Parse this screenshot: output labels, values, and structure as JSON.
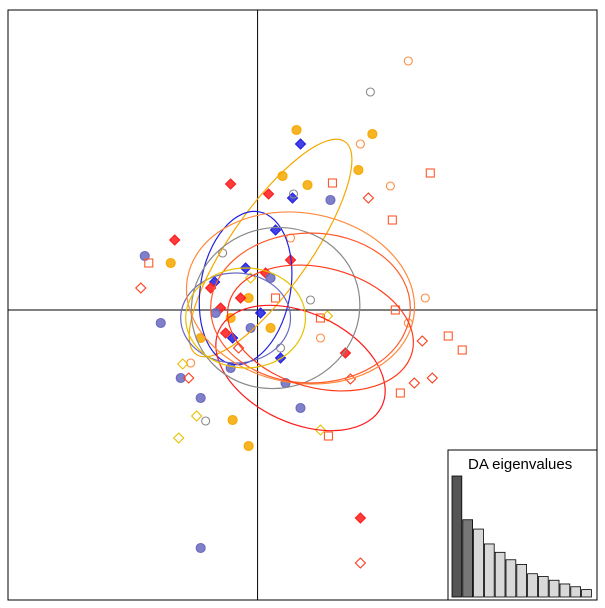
{
  "chart_data": [
    {
      "type": "scatter",
      "xlim": [
        -5,
        6.8
      ],
      "ylim": [
        -5.8,
        6.0
      ],
      "series": [
        {
          "color": "#f6a800",
          "shape": "circle",
          "filled": true,
          "x": [
            0.78,
            2.3,
            1.0,
            0.5,
            2.02,
            -1.74,
            -0.54,
            -0.18,
            0.26,
            -0.5,
            -0.18,
            -1.14
          ],
          "y": [
            3.6,
            3.52,
            2.5,
            2.68,
            2.8,
            0.94,
            -0.16,
            0.24,
            -0.36,
            -2.2,
            -2.72,
            -0.56
          ],
          "ellipse": {
            "center": [
              0.26,
              1.24
            ],
            "axes": [
              2.6,
              0.8
            ],
            "angle": 55
          }
        },
        {
          "color": "#2020e0",
          "shape": "diamond",
          "filled": true,
          "x": [
            0.86,
            0.7,
            0.36,
            -0.24,
            0.06,
            -0.86,
            -0.5,
            0.46
          ],
          "y": [
            3.32,
            2.24,
            1.6,
            0.84,
            -0.06,
            0.56,
            -0.56,
            -0.96
          ],
          "ellipse": {
            "center": [
              -0.24,
              0.44
            ],
            "axes": [
              1.55,
              0.9
            ],
            "angle": 80
          }
        },
        {
          "color": "#ff1a1a",
          "shape": "diamond",
          "filled": true,
          "x": [
            -0.54,
            0.22,
            -1.66,
            -0.94,
            -0.74,
            -0.34,
            0.16,
            1.76,
            2.06,
            0.66,
            -0.64
          ],
          "y": [
            2.52,
            2.32,
            1.4,
            0.44,
            0.04,
            0.24,
            0.74,
            -0.86,
            -4.16,
            1.0,
            -0.46
          ],
          "ellipse": {
            "center": [
              0.86,
              -1.16
            ],
            "axes": [
              1.8,
              1.1
            ],
            "angle": -25
          }
        },
        {
          "color": "#6a6ac0",
          "shape": "circle",
          "filled": true,
          "x": [
            -2.26,
            -1.14,
            1.46,
            -1.94,
            -1.14,
            -0.54,
            -0.14,
            0.56,
            0.86,
            -1.54,
            -0.84,
            0.26
          ],
          "y": [
            1.08,
            -4.76,
            2.2,
            -0.26,
            -1.76,
            -1.16,
            -0.36,
            -1.46,
            -1.96,
            -1.36,
            -0.06,
            0.64
          ],
          "ellipse": {
            "center": [
              -0.44,
              -0.16
            ],
            "axes": [
              1.1,
              0.9
            ],
            "angle": 0
          }
        },
        {
          "color": "#888888",
          "shape": "circle",
          "filled": false,
          "x": [
            2.26,
            0.72,
            1.06,
            -1.04,
            -0.7,
            0.46
          ],
          "y": [
            4.36,
            2.32,
            0.2,
            -2.22,
            1.14,
            -0.76
          ],
          "ellipse": {
            "center": [
              0.36,
              0.04
            ],
            "axes": [
              1.7,
              1.6
            ],
            "angle": 20
          }
        },
        {
          "color": "#ff8a3d",
          "shape": "circle",
          "filled": false,
          "x": [
            3.02,
            2.06,
            2.66,
            3.36,
            3.02,
            1.26,
            -1.34,
            0.66
          ],
          "y": [
            4.98,
            3.32,
            2.48,
            0.24,
            -0.26,
            -0.56,
            -1.06,
            1.44
          ],
          "ellipse": {
            "center": [
              0.86,
              0.24
            ],
            "axes": [
              2.3,
              1.7
            ],
            "angle": -10
          }
        },
        {
          "color": "#ff5a2a",
          "shape": "square",
          "filled": false,
          "x": [
            3.46,
            1.5,
            2.7,
            2.76,
            3.82,
            4.1,
            2.86,
            1.42,
            -2.18,
            1.26,
            0.36
          ],
          "y": [
            2.74,
            2.54,
            1.8,
            0,
            -0.52,
            -0.8,
            -1.66,
            -2.52,
            0.94,
            -0.16,
            0.24
          ],
          "ellipse": {
            "center": [
              1.06,
              0.04
            ],
            "axes": [
              2.0,
              1.5
            ],
            "angle": 0
          }
        },
        {
          "color": "#ff3a1a",
          "shape": "diamond",
          "filled": false,
          "x": [
            -2.34,
            2.06,
            3.5,
            3.14,
            3.3,
            -1.38,
            1.86,
            -0.38,
            2.22
          ],
          "y": [
            0.44,
            -5.06,
            -1.36,
            -1.46,
            -0.62,
            -1.36,
            -1.38,
            -0.76,
            2.24
          ],
          "ellipse": {
            "center": [
              1.26,
              -0.36
            ],
            "axes": [
              1.9,
              1.2
            ],
            "angle": -15
          }
        },
        {
          "color": "#e8c000",
          "shape": "diamond",
          "filled": false,
          "x": [
            -1.58,
            -1.22,
            1.4,
            -0.14,
            1.26,
            -1.5
          ],
          "y": [
            -2.56,
            -2.12,
            -0.12,
            0.64,
            -2.4,
            -1.08
          ],
          "ellipse": {
            "center": [
              -0.24,
              -0.16
            ],
            "axes": [
              1.2,
              1.0
            ],
            "angle": 0
          }
        }
      ]
    },
    {
      "type": "bar",
      "title": "DA eigenvalues",
      "values": [
        130,
        83,
        73,
        57,
        48,
        40,
        35,
        25,
        22,
        18,
        14,
        11,
        8
      ],
      "colors": [
        "#555555",
        "#777777",
        "#d9d9d9",
        "#d9d9d9",
        "#d9d9d9",
        "#d9d9d9",
        "#d9d9d9",
        "#d9d9d9",
        "#d9d9d9",
        "#d9d9d9",
        "#d9d9d9",
        "#d9d9d9",
        "#d9d9d9"
      ]
    }
  ]
}
